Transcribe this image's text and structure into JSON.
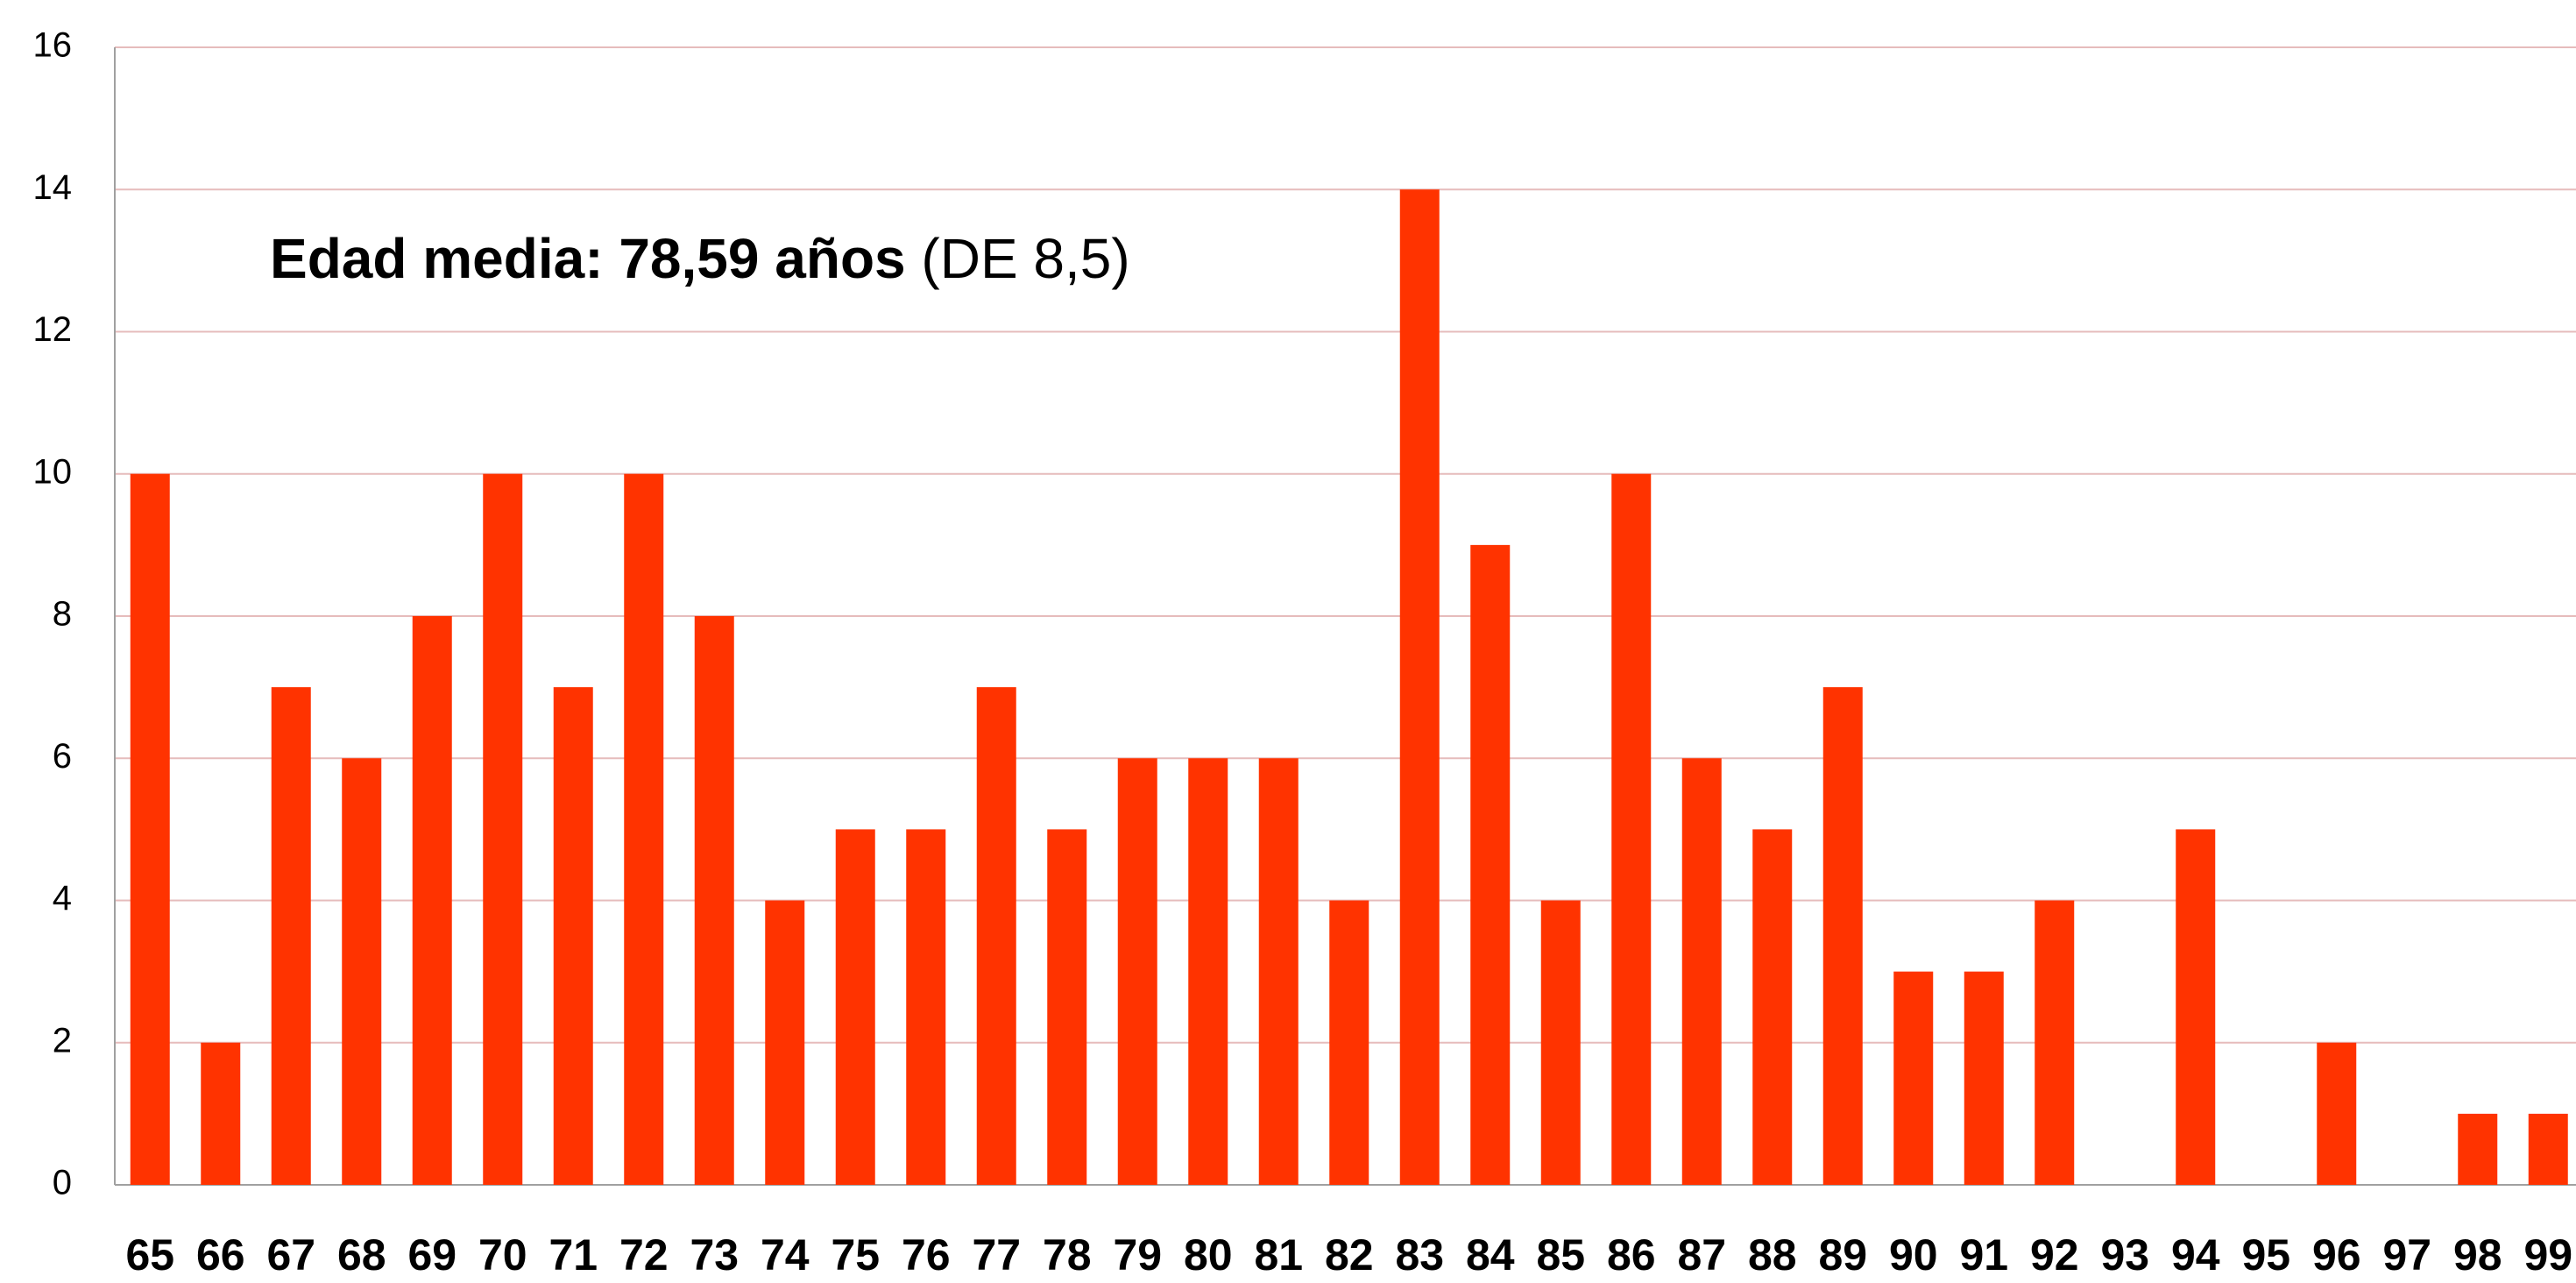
{
  "chart_data": {
    "type": "bar",
    "annotation": [
      "Edad media: 78,59 años",
      "(DE 8,5)"
    ],
    "categories": [
      "65",
      "66",
      "67",
      "68",
      "69",
      "70",
      "71",
      "72",
      "73",
      "74",
      "75",
      "76",
      "77",
      "78",
      "79",
      "80",
      "81",
      "82",
      "83",
      "84",
      "85",
      "86",
      "87",
      "88",
      "89",
      "90",
      "91",
      "92",
      "93",
      "94",
      "95",
      "96",
      "97",
      "98",
      "99"
    ],
    "values": [
      10,
      2,
      7,
      6,
      8,
      10,
      7,
      10,
      8,
      4,
      5,
      5,
      7,
      5,
      6,
      6,
      6,
      4,
      14,
      9,
      4,
      10,
      6,
      5,
      7,
      3,
      3,
      4,
      0,
      5,
      0,
      2,
      0,
      1,
      1
    ],
    "color": "#ff3300",
    "ylim": [
      0,
      16
    ],
    "yticks": [
      0,
      2,
      4,
      6,
      8,
      10,
      12,
      14,
      16
    ],
    "grid": true
  }
}
